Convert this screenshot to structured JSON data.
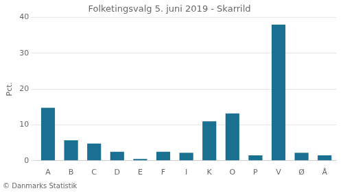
{
  "chart_data": {
    "type": "bar",
    "title": "Folketingsvalg 5. juni 2019 - Skarrild",
    "ylabel": "Pct.",
    "footnote": "© Danmarks Statistik",
    "categories": [
      "A",
      "B",
      "C",
      "D",
      "E",
      "F",
      "I",
      "K",
      "O",
      "P",
      "V",
      "Ø",
      "Å"
    ],
    "values": [
      14.8,
      5.7,
      4.8,
      2.5,
      0.5,
      2.5,
      2.2,
      11.0,
      13.2,
      1.5,
      38.0,
      2.2,
      1.5
    ],
    "color": "#1a7090",
    "ylim": [
      0,
      40
    ],
    "yticks": [
      0,
      10,
      20,
      30,
      40
    ],
    "grid": true
  }
}
